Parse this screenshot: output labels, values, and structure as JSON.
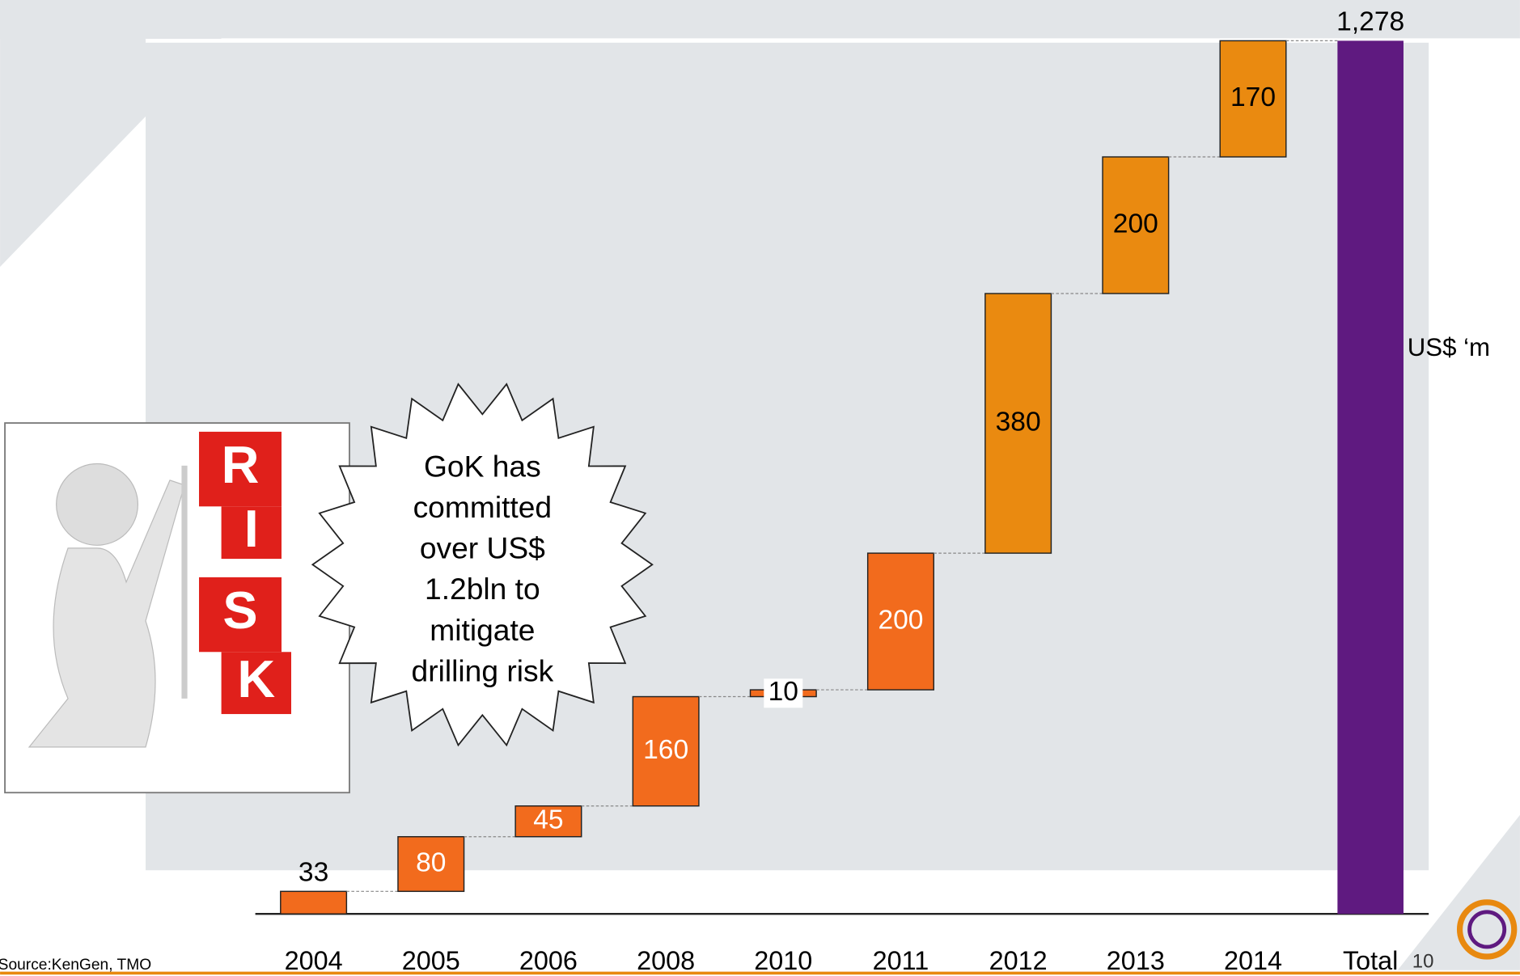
{
  "chart_data": {
    "type": "waterfall",
    "categories": [
      "2004",
      "2005",
      "2006",
      "2008",
      "2010",
      "2011",
      "2012",
      "2013",
      "2014",
      "Total"
    ],
    "values": [
      33,
      80,
      45,
      160,
      10,
      200,
      380,
      200,
      170,
      1278
    ],
    "value_labels": [
      "33",
      "80",
      "45",
      "160",
      "10",
      "200",
      "380",
      "200",
      "170",
      "1,278"
    ],
    "colors": [
      "#f26b1d",
      "#f26b1d",
      "#f26b1d",
      "#f26b1d",
      "#f26b1d",
      "#f26b1d",
      "#ea8a10",
      "#ea8a10",
      "#ea8a10",
      "#5f1a80"
    ],
    "unit_label": "US$ ‘m"
  },
  "callout": [
    "GoK has",
    "committed",
    "over US$",
    "1.2bln to",
    "mitigate",
    "drilling risk"
  ],
  "illustration_letters": [
    "R",
    "I",
    "S",
    "K"
  ],
  "source": "Source:KenGen, TMO",
  "page_number": "10"
}
